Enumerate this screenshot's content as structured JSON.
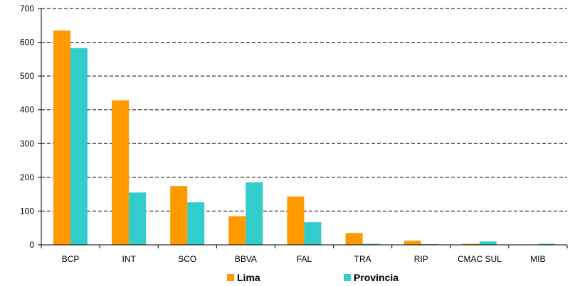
{
  "chart_data": {
    "type": "bar",
    "title": "",
    "categories": [
      "BCP",
      "INT",
      "SCO",
      "BBVA",
      "FAL",
      "TRA",
      "RIP",
      "CMAC SUL",
      "MIB"
    ],
    "series": [
      {
        "name": "Lima",
        "color": "#FF9900",
        "values": [
          635,
          428,
          174,
          85,
          143,
          35,
          12,
          3,
          1
        ]
      },
      {
        "name": "Provincia",
        "color": "#33CCCC",
        "values": [
          583,
          155,
          126,
          185,
          67,
          3,
          2,
          10,
          3
        ]
      }
    ],
    "ylim": [
      0,
      700
    ],
    "yticks": [
      0,
      100,
      200,
      300,
      400,
      500,
      600,
      700
    ],
    "xlabel": "",
    "ylabel": "",
    "grid": true,
    "legend_position": "bottom"
  }
}
